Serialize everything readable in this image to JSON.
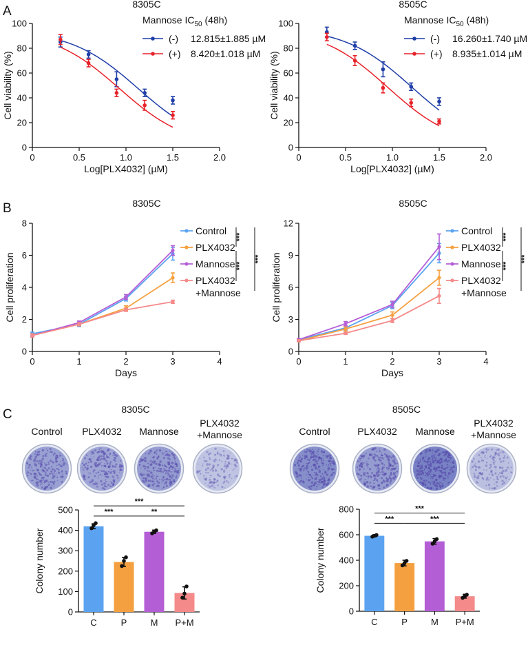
{
  "panels": {
    "a": "A",
    "b": "B",
    "c": "C"
  },
  "colors": {
    "minus": "#1f3ea8",
    "plus": "#e8222a",
    "control": "#5ba3f0",
    "plx": "#f5a040",
    "mannose": "#b45ed6",
    "combo": "#f48a8a"
  },
  "chart_data": [
    {
      "type": "line",
      "panel": "A",
      "title": "8305C",
      "xlabel": "Log[PLX4032] (µM)",
      "ylabel": "Cell viability (%)",
      "xlim": [
        0,
        2.0
      ],
      "ylim": [
        0,
        100
      ],
      "xticks": [
        "0",
        "0.5",
        "1.0",
        "1.5",
        "2.0"
      ],
      "yticks": [
        "0",
        "20",
        "40",
        "60",
        "80",
        "100"
      ],
      "legend_header": {
        "label": "Mannose",
        "ic": "IC",
        "sub": "50",
        "tail": " (48h)"
      },
      "x": [
        0.3,
        0.6,
        0.9,
        1.2,
        1.5
      ],
      "series": [
        {
          "name": "(-)",
          "ic50": "12.815±1.885 µM",
          "color": "#1f3ea8",
          "values": [
            85,
            75,
            55,
            44,
            38
          ],
          "errors": [
            4,
            3,
            6,
            3,
            3
          ],
          "fit": {
            "top": 95,
            "ec": 1.13,
            "slope": 1.2
          }
        },
        {
          "name": "(+)",
          "ic50": "8.420±1.018 µM",
          "color": "#e8222a",
          "values": [
            87,
            68,
            44,
            34,
            26
          ],
          "errors": [
            4,
            3,
            3,
            4,
            3
          ],
          "fit": {
            "top": 95,
            "ec": 0.93,
            "slope": 1.2
          }
        }
      ]
    },
    {
      "type": "line",
      "panel": "A",
      "title": "8505C",
      "xlabel": "Log[PLX4032] (µM)",
      "ylabel": "Cell viability (%)",
      "xlim": [
        0,
        2.0
      ],
      "ylim": [
        0,
        100
      ],
      "xticks": [
        "0",
        "0.5",
        "1.0",
        "1.5",
        "2.0"
      ],
      "yticks": [
        "0",
        "20",
        "40",
        "60",
        "80",
        "100"
      ],
      "legend_header": {
        "label": "Mannose",
        "ic": "IC",
        "sub": "50",
        "tail": " (48h)"
      },
      "x": [
        0.3,
        0.6,
        0.9,
        1.2,
        1.5
      ],
      "series": [
        {
          "name": "(-)",
          "ic50": "16.260±1.740 µM",
          "color": "#1f3ea8",
          "values": [
            93,
            82,
            63,
            49,
            37
          ],
          "errors": [
            4,
            3,
            6,
            3,
            3
          ],
          "fit": {
            "top": 97,
            "ec": 1.21,
            "slope": 1.2
          }
        },
        {
          "name": "(+)",
          "ic50": "8.935±1.014 µM",
          "color": "#e8222a",
          "values": [
            89,
            70,
            48,
            36,
            21
          ],
          "errors": [
            3,
            4,
            4,
            3,
            2
          ],
          "fit": {
            "top": 97,
            "ec": 0.95,
            "slope": 1.2
          }
        }
      ]
    },
    {
      "type": "line",
      "panel": "B",
      "title": "8305C",
      "xlabel": "Days",
      "ylabel": "Cell proliferation",
      "xlim": [
        0,
        4
      ],
      "ylim": [
        0,
        8
      ],
      "xticks": [
        "0",
        "1",
        "2",
        "3",
        "4"
      ],
      "yticks": [
        "0",
        "2",
        "4",
        "6",
        "8"
      ],
      "x": [
        0,
        1,
        2,
        3
      ],
      "series": [
        {
          "name": "Control",
          "color": "#5ba3f0",
          "values": [
            1.1,
            1.7,
            3.3,
            6.1
          ],
          "errors": [
            0.1,
            0.15,
            0.15,
            0.4
          ]
        },
        {
          "name": "PLX4032",
          "color": "#f5a040",
          "values": [
            1.0,
            1.7,
            2.7,
            4.6
          ],
          "errors": [
            0.1,
            0.1,
            0.15,
            0.3
          ]
        },
        {
          "name": "Mannose",
          "color": "#b45ed6",
          "values": [
            1.0,
            1.8,
            3.4,
            6.3
          ],
          "errors": [
            0.1,
            0.1,
            0.15,
            0.3
          ]
        },
        {
          "name": "PLX4032",
          "name2": "+Mannose",
          "color": "#f48a8a",
          "values": [
            1.0,
            1.7,
            2.6,
            3.1
          ],
          "errors": [
            0.1,
            0.1,
            0.1,
            0.1
          ]
        }
      ],
      "significance": [
        "***",
        "***",
        "***"
      ]
    },
    {
      "type": "line",
      "panel": "B",
      "title": "8505C",
      "xlabel": "Days",
      "ylabel": "Cell proliferation",
      "xlim": [
        0,
        4
      ],
      "ylim": [
        0,
        12
      ],
      "xticks": [
        "0",
        "1",
        "2",
        "3",
        "4"
      ],
      "yticks": [
        "0",
        "3",
        "6",
        "9",
        "12"
      ],
      "x": [
        0,
        1,
        2,
        3
      ],
      "series": [
        {
          "name": "Control",
          "color": "#5ba3f0",
          "values": [
            1.1,
            2.2,
            4.3,
            9.2
          ],
          "errors": [
            0.1,
            0.2,
            0.3,
            0.9
          ]
        },
        {
          "name": "PLX4032",
          "color": "#f5a040",
          "values": [
            1.0,
            2.1,
            3.4,
            6.9
          ],
          "errors": [
            0.1,
            0.2,
            0.3,
            0.7
          ]
        },
        {
          "name": "Mannose",
          "color": "#b45ed6",
          "values": [
            1.1,
            2.6,
            4.4,
            9.8
          ],
          "errors": [
            0.1,
            0.2,
            0.3,
            1.2
          ]
        },
        {
          "name": "PLX4032",
          "name2": "+Mannose",
          "color": "#f48a8a",
          "values": [
            1.0,
            1.7,
            2.9,
            5.2
          ],
          "errors": [
            0.1,
            0.1,
            0.2,
            0.7
          ]
        }
      ],
      "significance": [
        "***",
        "***",
        "***"
      ]
    },
    {
      "type": "bar",
      "panel": "C",
      "title": "8305C",
      "dish_labels": [
        "Control",
        "PLX4032",
        "Mannose",
        "PLX4032",
        "+Mannose"
      ],
      "dish_density": [
        0.65,
        0.6,
        0.7,
        0.25
      ],
      "categories": [
        "C",
        "P",
        "M",
        "P+M"
      ],
      "ylabel": "Colony number",
      "ylim": [
        0,
        500
      ],
      "yticks": [
        "0",
        "100",
        "200",
        "300",
        "400",
        "500"
      ],
      "values": [
        420,
        245,
        393,
        93
      ],
      "errors": [
        12,
        22,
        8,
        30
      ],
      "points": [
        [
          410,
          425,
          435
        ],
        [
          225,
          250,
          268
        ],
        [
          385,
          393,
          400
        ],
        [
          70,
          90,
          125
        ]
      ],
      "colors": [
        "#5ba3f0",
        "#f5a040",
        "#b45ed6",
        "#f48a8a"
      ],
      "comparisons": [
        {
          "from": 0,
          "to": 1,
          "label": "***",
          "y": 470
        },
        {
          "from": 1,
          "to": 3,
          "label": "**",
          "y": 470
        },
        {
          "from": 0,
          "to": 3,
          "label": "***",
          "y": 520
        }
      ]
    },
    {
      "type": "bar",
      "panel": "C",
      "title": "8505C",
      "dish_labels": [
        "Control",
        "PLX4032",
        "Mannose",
        "PLX4032",
        "+Mannose"
      ],
      "dish_density": [
        0.85,
        0.7,
        1.0,
        0.3
      ],
      "categories": [
        "C",
        "P",
        "M",
        "P+M"
      ],
      "ylabel": "Colony number",
      "ylim": [
        0,
        800
      ],
      "yticks": [
        "0",
        "200",
        "400",
        "600",
        "800"
      ],
      "values": [
        592,
        378,
        548,
        118
      ],
      "errors": [
        8,
        22,
        22,
        15
      ],
      "points": [
        [
          585,
          592,
          598
        ],
        [
          360,
          378,
          395
        ],
        [
          530,
          548,
          566
        ],
        [
          105,
          118,
          130
        ]
      ],
      "colors": [
        "#5ba3f0",
        "#f5a040",
        "#b45ed6",
        "#f48a8a"
      ],
      "comparisons": [
        {
          "from": 0,
          "to": 1,
          "label": "***",
          "y": 690
        },
        {
          "from": 1,
          "to": 3,
          "label": "***",
          "y": 690
        },
        {
          "from": 0,
          "to": 3,
          "label": "***",
          "y": 770
        }
      ]
    }
  ]
}
